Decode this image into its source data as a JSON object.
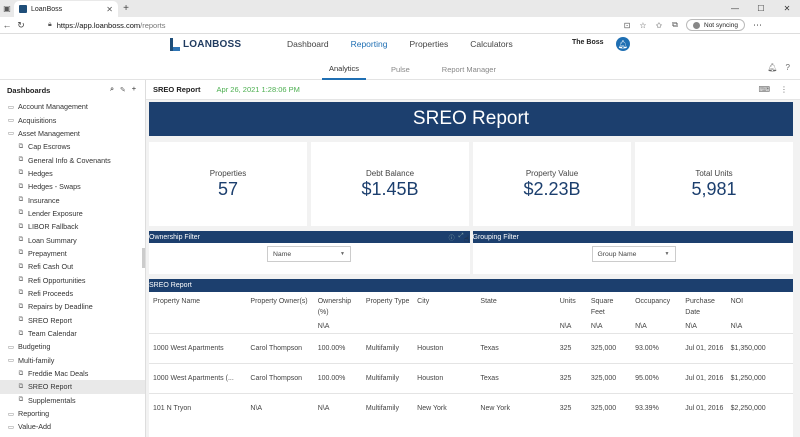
{
  "browser": {
    "tab_title": "LoanBoss",
    "url_host": "https://app.loanboss.com",
    "url_path": "/reports",
    "sync_label": "Not syncing"
  },
  "app": {
    "logo_text": "LOANBOSS",
    "nav": [
      "Dashboard",
      "Reporting",
      "Properties",
      "Calculators"
    ],
    "active_nav": "Reporting",
    "user": "The Boss",
    "subtabs": [
      "Analytics",
      "Pulse",
      "Report Manager"
    ],
    "active_subtab": "Analytics",
    "brand_color": "#1c3f6e",
    "accent_color": "#1f6fb3"
  },
  "sidebar": {
    "title": "Dashboards",
    "items": [
      {
        "label": "Account Management",
        "level": 0
      },
      {
        "label": "Acquisitions",
        "level": 0
      },
      {
        "label": "Asset Management",
        "level": 0
      },
      {
        "label": "Cap Escrows",
        "level": 1
      },
      {
        "label": "General Info & Covenants",
        "level": 1
      },
      {
        "label": "Hedges",
        "level": 1
      },
      {
        "label": "Hedges - Swaps",
        "level": 1
      },
      {
        "label": "Insurance",
        "level": 1
      },
      {
        "label": "Lender Exposure",
        "level": 1
      },
      {
        "label": "LIBOR Fallback",
        "level": 1
      },
      {
        "label": "Loan Summary",
        "level": 1
      },
      {
        "label": "Prepayment",
        "level": 1
      },
      {
        "label": "Refi Cash Out",
        "level": 1
      },
      {
        "label": "Refi Opportunities",
        "level": 1
      },
      {
        "label": "Refi Proceeds",
        "level": 1
      },
      {
        "label": "Repairs by Deadline",
        "level": 1
      },
      {
        "label": "SREO Report",
        "level": 1
      },
      {
        "label": "Team Calendar",
        "level": 1
      },
      {
        "label": "Budgeting",
        "level": 0
      },
      {
        "label": "Multi-family",
        "level": 0
      },
      {
        "label": "Freddie Mac Deals",
        "level": 1
      },
      {
        "label": "SREO Report",
        "level": 1,
        "selected": true
      },
      {
        "label": "Supplementals",
        "level": 1
      },
      {
        "label": "Reporting",
        "level": 0
      },
      {
        "label": "Value-Add",
        "level": 0
      }
    ]
  },
  "report": {
    "name": "SREO Report",
    "timestamp": "Apr 26, 2021 1:28:06 PM",
    "banner": "SREO Report",
    "kpis": [
      {
        "label": "Properties",
        "value": "57"
      },
      {
        "label": "Debt Balance",
        "value": "$1.45B"
      },
      {
        "label": "Property Value",
        "value": "$2.23B"
      },
      {
        "label": "Total Units",
        "value": "5,981"
      }
    ],
    "ownership_filter": {
      "title": "Ownership Filter",
      "value": "Name"
    },
    "grouping_filter": {
      "title": "Grouping Filter",
      "value": "Group Name"
    },
    "table": {
      "title": "SREO Report",
      "columns": [
        "Property Name",
        "Property Owner(s)",
        "Ownership (%)",
        "Property Type",
        "City",
        "State",
        "Units",
        "Square Feet",
        "Occupancy",
        "Purchase Date",
        "NOI"
      ],
      "subtotals": [
        "",
        "",
        "N\\A",
        "",
        "",
        "",
        "N\\A",
        "N\\A",
        "N\\A",
        "N\\A",
        "N\\A"
      ],
      "rows": [
        [
          "1000 West Apartments",
          "Carol Thompson",
          "100.00%",
          "Multifamily",
          "Houston",
          "Texas",
          "325",
          "325,000",
          "93.00%",
          "Jul 01, 2016",
          "$1,350,000"
        ],
        [
          "1000 West Apartments (...",
          "Carol Thompson",
          "100.00%",
          "Multifamily",
          "Houston",
          "Texas",
          "325",
          "325,000",
          "95.00%",
          "Jul 01, 2016",
          "$1,250,000"
        ],
        [
          "101 N Tryon",
          "N\\A",
          "N\\A",
          "Multifamily",
          "New York",
          "New York",
          "325",
          "325,000",
          "93.39%",
          "Jul 01, 2016",
          "$2,250,000"
        ]
      ]
    }
  }
}
